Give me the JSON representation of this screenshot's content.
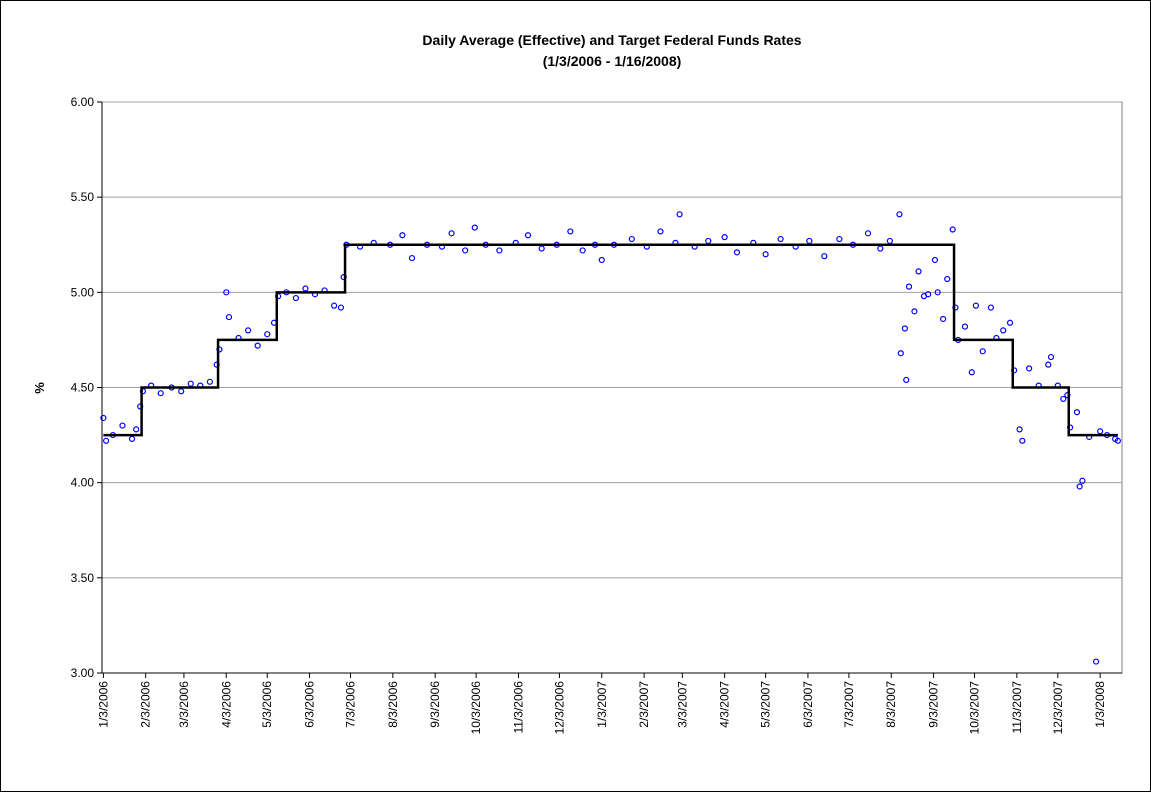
{
  "chart_data": {
    "type": "scatter",
    "title": "Daily Average (Effective) and Target Federal Funds Rates",
    "subtitle": "(1/3/2006 - 1/16/2008)",
    "ylabel": "%",
    "ylim": [
      3,
      6
    ],
    "yticks": [
      {
        "value": 3,
        "label": "3.00"
      },
      {
        "value": 3.5,
        "label": "3.50"
      },
      {
        "value": 4,
        "label": "4.00"
      },
      {
        "value": 4.5,
        "label": "4.50"
      },
      {
        "value": 5,
        "label": "5.00"
      },
      {
        "value": 5.5,
        "label": "5.50"
      },
      {
        "value": 6,
        "label": "6.00"
      }
    ],
    "xlim": [
      "1/2/2006",
      "1/19/2008"
    ],
    "xticks": [
      "1/3/2006",
      "2/3/2006",
      "3/3/2006",
      "4/3/2006",
      "5/3/2006",
      "6/3/2006",
      "7/3/2006",
      "8/3/2006",
      "9/3/2006",
      "10/3/2006",
      "11/3/2006",
      "12/3/2006",
      "1/3/2007",
      "2/3/2007",
      "3/3/2007",
      "4/3/2007",
      "5/3/2007",
      "6/3/2007",
      "7/3/2007",
      "8/3/2007",
      "9/3/2007",
      "10/3/2007",
      "11/3/2007",
      "12/3/2007",
      "1/3/2008"
    ],
    "grid": true,
    "series": [
      {
        "color": "#0000ff",
        "marker": "circle",
        "x": [
          "1/3/2006",
          "1/5/2006",
          "1/10/2006",
          "1/17/2006",
          "1/24/2006",
          "1/27/2006",
          "1/30/2006",
          "2/1/2006",
          "2/7/2006",
          "2/14/2006",
          "2/22/2006",
          "3/1/2006",
          "3/8/2006",
          "3/15/2006",
          "3/22/2006",
          "3/27/2006",
          "3/29/2006",
          "4/3/2006",
          "4/5/2006",
          "4/12/2006",
          "4/19/2006",
          "4/26/2006",
          "5/3/2006",
          "5/8/2006",
          "5/11/2006",
          "5/17/2006",
          "5/24/2006",
          "5/31/2006",
          "6/7/2006",
          "6/14/2006",
          "6/21/2006",
          "6/26/2006",
          "6/28/2006",
          "6/30/2006",
          "7/10/2006",
          "7/20/2006",
          "8/1/2006",
          "8/10/2006",
          "8/17/2006",
          "8/28/2006",
          "9/8/2006",
          "9/15/2006",
          "9/25/2006",
          "10/2/2006",
          "10/10/2006",
          "10/20/2006",
          "11/1/2006",
          "11/10/2006",
          "11/20/2006",
          "12/1/2006",
          "12/11/2006",
          "12/20/2006",
          "12/29/2006",
          "1/3/2007",
          "1/12/2007",
          "1/25/2007",
          "2/5/2007",
          "2/15/2007",
          "2/26/2007",
          "3/1/2007",
          "3/12/2007",
          "3/22/2007",
          "4/3/2007",
          "4/12/2007",
          "4/24/2007",
          "5/3/2007",
          "5/14/2007",
          "5/25/2007",
          "6/4/2007",
          "6/15/2007",
          "6/26/2007",
          "7/6/2007",
          "7/17/2007",
          "7/26/2007",
          "8/2/2007",
          "8/9/2007",
          "8/10/2007",
          "8/13/2007",
          "8/14/2007",
          "8/16/2007",
          "8/20/2007",
          "8/23/2007",
          "8/27/2007",
          "8/30/2007",
          "9/4/2007",
          "9/6/2007",
          "9/10/2007",
          "9/13/2007",
          "9/17/2007",
          "9/19/2007",
          "9/21/2007",
          "9/26/2007",
          "10/1/2007",
          "10/4/2007",
          "10/9/2007",
          "10/15/2007",
          "10/19/2007",
          "10/24/2007",
          "10/29/2007",
          "11/1/2007",
          "11/5/2007",
          "11/7/2007",
          "11/12/2007",
          "11/19/2007",
          "11/26/2007",
          "11/28/2007",
          "12/3/2007",
          "12/7/2007",
          "12/10/2007",
          "12/12/2007",
          "12/17/2007",
          "12/19/2007",
          "12/21/2007",
          "12/26/2007",
          "12/31/2007",
          "1/3/2008",
          "1/8/2008",
          "1/14/2008",
          "1/16/2008"
        ],
        "values": [
          4.34,
          4.22,
          4.25,
          4.3,
          4.23,
          4.28,
          4.4,
          4.48,
          4.51,
          4.47,
          4.5,
          4.48,
          4.52,
          4.51,
          4.53,
          4.62,
          4.7,
          5.0,
          4.87,
          4.76,
          4.8,
          4.72,
          4.78,
          4.84,
          4.98,
          5.0,
          4.97,
          5.02,
          4.99,
          5.01,
          4.93,
          4.92,
          5.08,
          5.25,
          5.24,
          5.26,
          5.25,
          5.3,
          5.18,
          5.25,
          5.24,
          5.31,
          5.22,
          5.34,
          5.25,
          5.22,
          5.26,
          5.3,
          5.23,
          5.25,
          5.32,
          5.22,
          5.25,
          5.17,
          5.25,
          5.28,
          5.24,
          5.32,
          5.26,
          5.41,
          5.24,
          5.27,
          5.29,
          5.21,
          5.26,
          5.2,
          5.28,
          5.24,
          5.27,
          5.19,
          5.28,
          5.25,
          5.31,
          5.23,
          5.27,
          5.41,
          4.68,
          4.81,
          4.54,
          5.03,
          4.9,
          5.11,
          4.98,
          4.99,
          5.17,
          5.0,
          4.86,
          5.07,
          5.33,
          4.92,
          4.75,
          4.82,
          4.58,
          4.93,
          4.69,
          4.92,
          4.76,
          4.8,
          4.84,
          4.59,
          4.28,
          4.22,
          4.6,
          4.51,
          4.62,
          4.66,
          4.51,
          4.44,
          4.46,
          4.29,
          4.37,
          3.98,
          4.01,
          4.24,
          3.06,
          4.27,
          4.25,
          4.23,
          4.22
        ]
      },
      {
        "color": "#000000",
        "line": "solid",
        "x": [
          "1/3/2006",
          "1/31/2006",
          "1/31/2006",
          "3/28/2006",
          "3/28/2006",
          "5/10/2006",
          "5/10/2006",
          "6/29/2006",
          "6/29/2006",
          "9/18/2007",
          "9/18/2007",
          "10/31/2007",
          "10/31/2007",
          "12/11/2007",
          "12/11/2007",
          "1/16/2008"
        ],
        "values": [
          4.25,
          4.25,
          4.5,
          4.5,
          4.75,
          4.75,
          5,
          5,
          5.25,
          5.25,
          4.75,
          4.75,
          4.5,
          4.5,
          4.25,
          4.25
        ]
      }
    ]
  }
}
